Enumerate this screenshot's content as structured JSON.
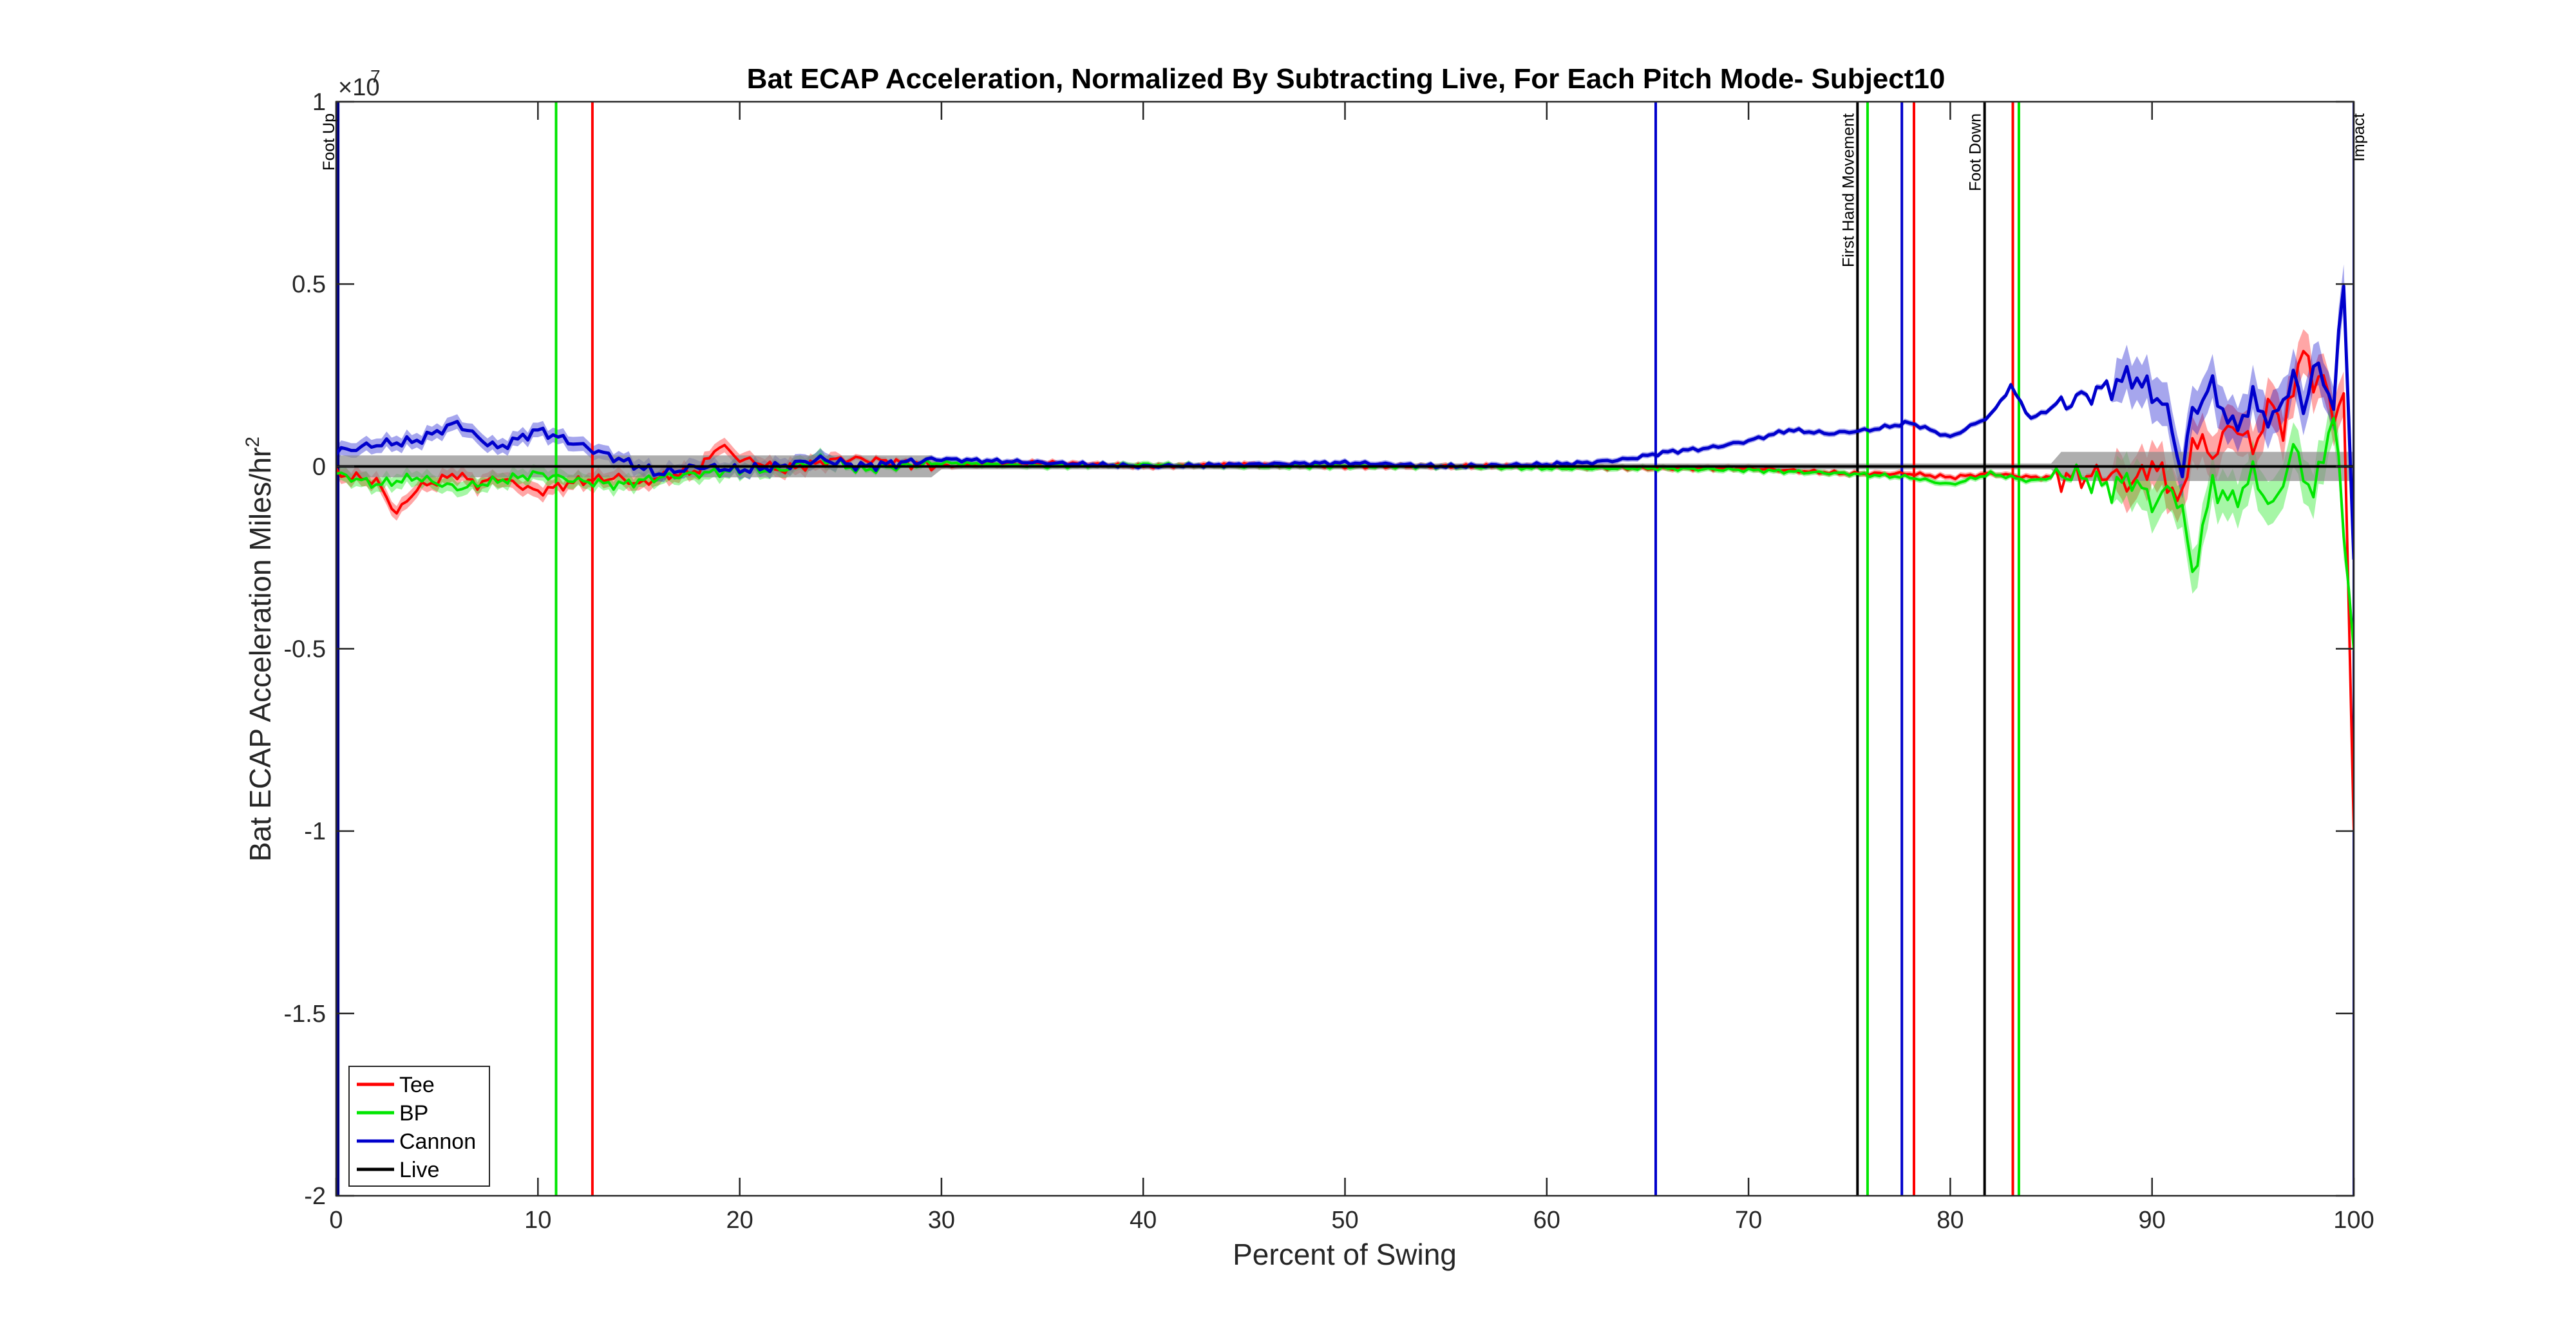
{
  "chart_data": {
    "type": "line",
    "title": "Bat ECAP Acceleration, Normalized By Subtracting Live, For Each Pitch Mode- Subject10",
    "xlabel": "Percent of Swing",
    "ylabel_main": "Bat ECAP Acceleration Miles/hr",
    "ylabel_sup": "2",
    "exponent_base": "×10",
    "exponent_power": "7",
    "xlim": [
      0,
      100
    ],
    "ylim": [
      -2,
      1
    ],
    "y_scale_factor": 10000000,
    "xticks": [
      0,
      10,
      20,
      30,
      40,
      50,
      60,
      70,
      80,
      90,
      100
    ],
    "xtick_labels": [
      "0",
      "10",
      "20",
      "30",
      "40",
      "50",
      "60",
      "70",
      "80",
      "90",
      "100"
    ],
    "yticks": [
      -2,
      -1.5,
      -1,
      -0.5,
      0,
      0.5,
      1
    ],
    "ytick_labels": [
      "-2",
      "-1.5",
      "-1",
      "-0.5",
      "0",
      "0.5",
      "1"
    ],
    "grid": false,
    "legend_position": "bottom-left",
    "colors": {
      "Tee": "#ff0000",
      "BP": "#00e600",
      "Cannon": "#0000cc",
      "Live": "#000000",
      "band": "#8c8c8c"
    },
    "series": [
      {
        "name": "Tee",
        "color": "#ff0000",
        "x": [
          0,
          1,
          2,
          3,
          4,
          5,
          6,
          7,
          8,
          10,
          12,
          14,
          15,
          16,
          17,
          18,
          19,
          20,
          21,
          22,
          24,
          25,
          26,
          28,
          30,
          32,
          35,
          40,
          45,
          50,
          55,
          60,
          65,
          70,
          75,
          78,
          80,
          82,
          84,
          86,
          88,
          89,
          90,
          91,
          91.5,
          92,
          93,
          94,
          95,
          96,
          96.5,
          97,
          97.5,
          98,
          98.5,
          99,
          99.5,
          100
        ],
        "y": [
          -0.02,
          -0.03,
          -0.04,
          -0.13,
          -0.06,
          -0.04,
          -0.02,
          -0.05,
          -0.03,
          -0.07,
          -0.04,
          -0.03,
          -0.05,
          -0.03,
          -0.02,
          -0.01,
          0.06,
          0.02,
          0.01,
          -0.01,
          0.01,
          0.02,
          0.02,
          0.01,
          0.0,
          0.005,
          0.01,
          0.0,
          0.005,
          0.0,
          0.0,
          0.0,
          -0.005,
          -0.005,
          -0.02,
          -0.02,
          -0.03,
          -0.02,
          -0.03,
          -0.03,
          -0.02,
          -0.05,
          0.01,
          -0.06,
          -0.1,
          0.08,
          0.03,
          0.12,
          0.05,
          0.18,
          0.1,
          0.2,
          0.35,
          0.2,
          0.28,
          0.1,
          0.22,
          -1.0
        ]
      },
      {
        "name": "BP",
        "color": "#00e600",
        "x": [
          0,
          2,
          4,
          6,
          8,
          10,
          12,
          14,
          16,
          18,
          20,
          22,
          24,
          26,
          28,
          30,
          35,
          40,
          45,
          50,
          55,
          60,
          65,
          70,
          75,
          78,
          80,
          82,
          84,
          86,
          88,
          89,
          90,
          91,
          91.5,
          92,
          93,
          94,
          95,
          96,
          97,
          98,
          99,
          100
        ],
        "y": [
          -0.02,
          -0.05,
          -0.03,
          -0.06,
          -0.04,
          -0.02,
          -0.04,
          -0.05,
          -0.03,
          -0.02,
          -0.01,
          -0.01,
          0.02,
          -0.01,
          0.0,
          0.01,
          0.0,
          0.005,
          0.0,
          0.0,
          0.0,
          -0.005,
          -0.005,
          -0.01,
          -0.02,
          -0.03,
          -0.05,
          -0.02,
          -0.04,
          -0.02,
          -0.06,
          -0.03,
          -0.1,
          -0.06,
          -0.12,
          -0.3,
          -0.05,
          -0.1,
          -0.02,
          -0.12,
          0.05,
          -0.08,
          0.15,
          -0.5
        ]
      },
      {
        "name": "Cannon",
        "color": "#0000cc",
        "x": [
          0,
          2,
          4,
          6,
          7,
          8,
          10,
          12,
          14,
          16,
          18,
          20,
          22,
          24,
          26,
          28,
          30,
          35,
          40,
          45,
          50,
          55,
          60,
          62,
          64,
          66,
          68,
          70,
          72,
          74,
          76,
          78,
          80,
          82,
          83,
          84,
          85,
          86,
          87,
          88,
          89,
          90,
          90.5,
          91,
          91.5,
          92,
          93,
          94,
          95,
          96,
          97,
          97.5,
          98,
          99,
          99.5,
          100
        ],
        "y": [
          0.04,
          0.06,
          0.07,
          0.12,
          0.08,
          0.05,
          0.1,
          0.06,
          0.02,
          -0.02,
          0.0,
          -0.01,
          0.0,
          0.02,
          0.0,
          0.01,
          0.02,
          0.01,
          0.0,
          0.005,
          0.01,
          0.0,
          0.005,
          0.01,
          0.02,
          0.04,
          0.05,
          0.07,
          0.1,
          0.09,
          0.1,
          0.12,
          0.08,
          0.14,
          0.22,
          0.13,
          0.16,
          0.18,
          0.2,
          0.22,
          0.25,
          0.2,
          0.18,
          0.1,
          -0.02,
          0.15,
          0.22,
          0.1,
          0.18,
          0.12,
          0.25,
          0.15,
          0.28,
          0.18,
          0.5,
          -0.25
        ]
      },
      {
        "name": "Live",
        "color": "#000000",
        "x": [
          0,
          100
        ],
        "y": [
          0,
          0
        ]
      }
    ],
    "event_lines": [
      {
        "label": "Foot Up",
        "x": 0.1,
        "color": "#000080"
      },
      {
        "label": "",
        "x": 10.9,
        "color": "#00e600"
      },
      {
        "label": "",
        "x": 12.7,
        "color": "#ff0000"
      },
      {
        "label": "",
        "x": 65.4,
        "color": "#0000cc"
      },
      {
        "label": "First Hand Movement",
        "x": 75.4,
        "color": "#000000"
      },
      {
        "label": "",
        "x": 75.9,
        "color": "#00e600"
      },
      {
        "label": "",
        "x": 77.6,
        "color": "#0000cc"
      },
      {
        "label": "",
        "x": 78.2,
        "color": "#ff0000"
      },
      {
        "label": "Foot Down",
        "x": 81.7,
        "color": "#000000"
      },
      {
        "label": "",
        "x": 83.1,
        "color": "#ff0000"
      },
      {
        "label": "",
        "x": 83.4,
        "color": "#00e600"
      },
      {
        "label": "Impact",
        "x": 100,
        "color": "#000080"
      }
    ]
  }
}
